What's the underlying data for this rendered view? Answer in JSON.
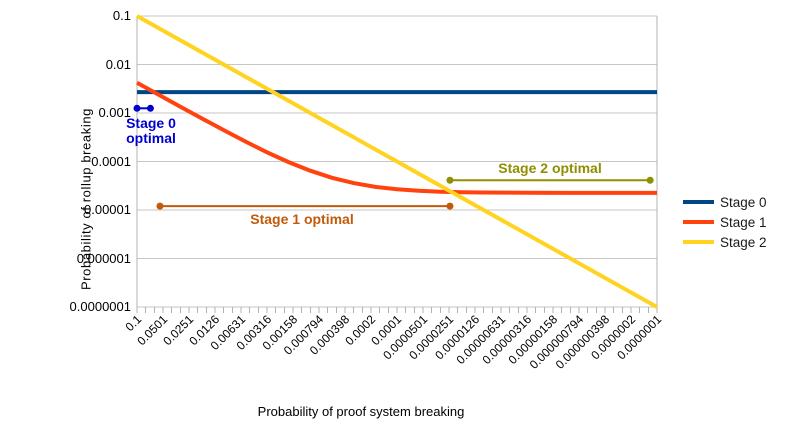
{
  "chart_data": {
    "type": "line",
    "title": "",
    "xlabel": "Probability of proof system breaking",
    "ylabel": "Probability of rollup breaking",
    "x_scale": "log-reversed",
    "y_scale": "log",
    "x_range": [
      0.1,
      1e-07
    ],
    "y_range": [
      0.1,
      1e-07
    ],
    "grid": "horizontal-only",
    "legend_position": "right",
    "y_tick_labels": [
      "0.1",
      "0.01",
      "0.001",
      "0.0001",
      "0.00001",
      "0.000001",
      "0.0000001"
    ],
    "x_tick_labels": [
      "0.1",
      "0.0501",
      "0.0251",
      "0.0126",
      "0.00631",
      "0.00316",
      "0.00158",
      "0.000794",
      "0.000398",
      "0.0002",
      "0.0001",
      "0.0000501",
      "0.0000251",
      "0.0000126",
      "0.00000631",
      "0.00000316",
      "0.00000158",
      "0.000000794",
      "0.000000398",
      "0.0000002",
      "0.0000001"
    ],
    "series": [
      {
        "name": "Stage 0",
        "color": "#004586",
        "points": [
          [
            0.1,
            0.0027
          ],
          [
            1e-07,
            0.0027
          ]
        ]
      },
      {
        "name": "Stage 1",
        "color": "#FF420E",
        "points": [
          [
            0.1,
            0.00422
          ],
          [
            0.0562,
            0.00238
          ],
          [
            0.0316,
            0.00135
          ],
          [
            0.0178,
            0.000769
          ],
          [
            0.01,
            0.000443
          ],
          [
            0.00562,
            0.000259
          ],
          [
            0.00316,
            0.000155
          ],
          [
            0.00178,
            9.72e-05
          ],
          [
            0.001,
            6.45e-05
          ],
          [
            0.000562,
            4.61e-05
          ],
          [
            0.000316,
            3.58e-05
          ],
          [
            0.000178,
            3e-05
          ],
          [
            0.0001,
            2.67e-05
          ],
          [
            5.62e-05,
            2.49e-05
          ],
          [
            3.16e-05,
            2.38e-05
          ],
          [
            1.78e-05,
            2.32e-05
          ],
          [
            1e-05,
            2.29e-05
          ],
          [
            3.16e-06,
            2.26e-05
          ],
          [
            1e-06,
            2.25e-05
          ],
          [
            1e-07,
            2.25e-05
          ]
        ]
      },
      {
        "name": "Stage 2",
        "color": "#FFD320",
        "points": [
          [
            0.1,
            0.1
          ],
          [
            1e-07,
            1e-07
          ]
        ]
      }
    ],
    "annotations": [
      {
        "id": "stage-0-optimal",
        "label": "Stage 0 optimal",
        "label_lines": [
          "Stage 0",
          "optimal"
        ],
        "color": "#0000CC",
        "x_start": 0.1,
        "x_end": 0.07,
        "y": 0.00125
      },
      {
        "id": "stage-1-optimal",
        "label": "Stage 1 optimal",
        "label_lines": [
          "Stage 1 optimal"
        ],
        "color": "#C25A0A",
        "x_start": 0.0543,
        "x_end": 2.45e-05,
        "y": 1.2e-05
      },
      {
        "id": "stage-2-optimal",
        "label": "Stage 2 optimal",
        "label_lines": [
          "Stage 2 optimal"
        ],
        "color": "#8F8F00",
        "x_start": 2.45e-05,
        "x_end": 1.2e-07,
        "y": 4.1e-05
      }
    ]
  },
  "colors": {
    "gridline": "#C6C6C6",
    "axis": "#B3B3B3",
    "tick_text": "#000000",
    "background": "#FFFFFF"
  }
}
